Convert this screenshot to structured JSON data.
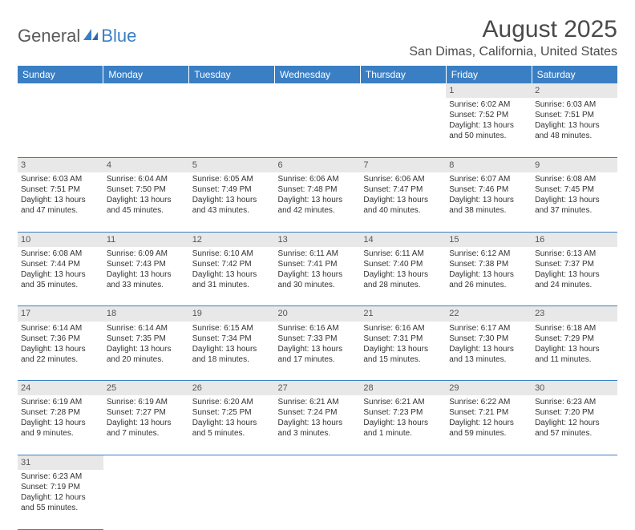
{
  "logo": {
    "part1": "General",
    "part2": "Blue"
  },
  "title": "August 2025",
  "location": "San Dimas, California, United States",
  "colors": {
    "header_bg": "#3a7fc4",
    "header_text": "#ffffff",
    "daynum_bg": "#e8e8e8",
    "border": "#3a7fc4",
    "text": "#333333"
  },
  "weekdays": [
    "Sunday",
    "Monday",
    "Tuesday",
    "Wednesday",
    "Thursday",
    "Friday",
    "Saturday"
  ],
  "weeks": [
    {
      "nums": [
        "",
        "",
        "",
        "",
        "",
        "1",
        "2"
      ],
      "cells": [
        null,
        null,
        null,
        null,
        null,
        {
          "sunrise": "Sunrise: 6:02 AM",
          "sunset": "Sunset: 7:52 PM",
          "day1": "Daylight: 13 hours",
          "day2": "and 50 minutes."
        },
        {
          "sunrise": "Sunrise: 6:03 AM",
          "sunset": "Sunset: 7:51 PM",
          "day1": "Daylight: 13 hours",
          "day2": "and 48 minutes."
        }
      ]
    },
    {
      "nums": [
        "3",
        "4",
        "5",
        "6",
        "7",
        "8",
        "9"
      ],
      "cells": [
        {
          "sunrise": "Sunrise: 6:03 AM",
          "sunset": "Sunset: 7:51 PM",
          "day1": "Daylight: 13 hours",
          "day2": "and 47 minutes."
        },
        {
          "sunrise": "Sunrise: 6:04 AM",
          "sunset": "Sunset: 7:50 PM",
          "day1": "Daylight: 13 hours",
          "day2": "and 45 minutes."
        },
        {
          "sunrise": "Sunrise: 6:05 AM",
          "sunset": "Sunset: 7:49 PM",
          "day1": "Daylight: 13 hours",
          "day2": "and 43 minutes."
        },
        {
          "sunrise": "Sunrise: 6:06 AM",
          "sunset": "Sunset: 7:48 PM",
          "day1": "Daylight: 13 hours",
          "day2": "and 42 minutes."
        },
        {
          "sunrise": "Sunrise: 6:06 AM",
          "sunset": "Sunset: 7:47 PM",
          "day1": "Daylight: 13 hours",
          "day2": "and 40 minutes."
        },
        {
          "sunrise": "Sunrise: 6:07 AM",
          "sunset": "Sunset: 7:46 PM",
          "day1": "Daylight: 13 hours",
          "day2": "and 38 minutes."
        },
        {
          "sunrise": "Sunrise: 6:08 AM",
          "sunset": "Sunset: 7:45 PM",
          "day1": "Daylight: 13 hours",
          "day2": "and 37 minutes."
        }
      ]
    },
    {
      "nums": [
        "10",
        "11",
        "12",
        "13",
        "14",
        "15",
        "16"
      ],
      "cells": [
        {
          "sunrise": "Sunrise: 6:08 AM",
          "sunset": "Sunset: 7:44 PM",
          "day1": "Daylight: 13 hours",
          "day2": "and 35 minutes."
        },
        {
          "sunrise": "Sunrise: 6:09 AM",
          "sunset": "Sunset: 7:43 PM",
          "day1": "Daylight: 13 hours",
          "day2": "and 33 minutes."
        },
        {
          "sunrise": "Sunrise: 6:10 AM",
          "sunset": "Sunset: 7:42 PM",
          "day1": "Daylight: 13 hours",
          "day2": "and 31 minutes."
        },
        {
          "sunrise": "Sunrise: 6:11 AM",
          "sunset": "Sunset: 7:41 PM",
          "day1": "Daylight: 13 hours",
          "day2": "and 30 minutes."
        },
        {
          "sunrise": "Sunrise: 6:11 AM",
          "sunset": "Sunset: 7:40 PM",
          "day1": "Daylight: 13 hours",
          "day2": "and 28 minutes."
        },
        {
          "sunrise": "Sunrise: 6:12 AM",
          "sunset": "Sunset: 7:38 PM",
          "day1": "Daylight: 13 hours",
          "day2": "and 26 minutes."
        },
        {
          "sunrise": "Sunrise: 6:13 AM",
          "sunset": "Sunset: 7:37 PM",
          "day1": "Daylight: 13 hours",
          "day2": "and 24 minutes."
        }
      ]
    },
    {
      "nums": [
        "17",
        "18",
        "19",
        "20",
        "21",
        "22",
        "23"
      ],
      "cells": [
        {
          "sunrise": "Sunrise: 6:14 AM",
          "sunset": "Sunset: 7:36 PM",
          "day1": "Daylight: 13 hours",
          "day2": "and 22 minutes."
        },
        {
          "sunrise": "Sunrise: 6:14 AM",
          "sunset": "Sunset: 7:35 PM",
          "day1": "Daylight: 13 hours",
          "day2": "and 20 minutes."
        },
        {
          "sunrise": "Sunrise: 6:15 AM",
          "sunset": "Sunset: 7:34 PM",
          "day1": "Daylight: 13 hours",
          "day2": "and 18 minutes."
        },
        {
          "sunrise": "Sunrise: 6:16 AM",
          "sunset": "Sunset: 7:33 PM",
          "day1": "Daylight: 13 hours",
          "day2": "and 17 minutes."
        },
        {
          "sunrise": "Sunrise: 6:16 AM",
          "sunset": "Sunset: 7:31 PM",
          "day1": "Daylight: 13 hours",
          "day2": "and 15 minutes."
        },
        {
          "sunrise": "Sunrise: 6:17 AM",
          "sunset": "Sunset: 7:30 PM",
          "day1": "Daylight: 13 hours",
          "day2": "and 13 minutes."
        },
        {
          "sunrise": "Sunrise: 6:18 AM",
          "sunset": "Sunset: 7:29 PM",
          "day1": "Daylight: 13 hours",
          "day2": "and 11 minutes."
        }
      ]
    },
    {
      "nums": [
        "24",
        "25",
        "26",
        "27",
        "28",
        "29",
        "30"
      ],
      "cells": [
        {
          "sunrise": "Sunrise: 6:19 AM",
          "sunset": "Sunset: 7:28 PM",
          "day1": "Daylight: 13 hours",
          "day2": "and 9 minutes."
        },
        {
          "sunrise": "Sunrise: 6:19 AM",
          "sunset": "Sunset: 7:27 PM",
          "day1": "Daylight: 13 hours",
          "day2": "and 7 minutes."
        },
        {
          "sunrise": "Sunrise: 6:20 AM",
          "sunset": "Sunset: 7:25 PM",
          "day1": "Daylight: 13 hours",
          "day2": "and 5 minutes."
        },
        {
          "sunrise": "Sunrise: 6:21 AM",
          "sunset": "Sunset: 7:24 PM",
          "day1": "Daylight: 13 hours",
          "day2": "and 3 minutes."
        },
        {
          "sunrise": "Sunrise: 6:21 AM",
          "sunset": "Sunset: 7:23 PM",
          "day1": "Daylight: 13 hours",
          "day2": "and 1 minute."
        },
        {
          "sunrise": "Sunrise: 6:22 AM",
          "sunset": "Sunset: 7:21 PM",
          "day1": "Daylight: 12 hours",
          "day2": "and 59 minutes."
        },
        {
          "sunrise": "Sunrise: 6:23 AM",
          "sunset": "Sunset: 7:20 PM",
          "day1": "Daylight: 12 hours",
          "day2": "and 57 minutes."
        }
      ]
    },
    {
      "nums": [
        "31",
        "",
        "",
        "",
        "",
        "",
        ""
      ],
      "cells": [
        {
          "sunrise": "Sunrise: 6:23 AM",
          "sunset": "Sunset: 7:19 PM",
          "day1": "Daylight: 12 hours",
          "day2": "and 55 minutes."
        },
        null,
        null,
        null,
        null,
        null,
        null
      ]
    }
  ]
}
